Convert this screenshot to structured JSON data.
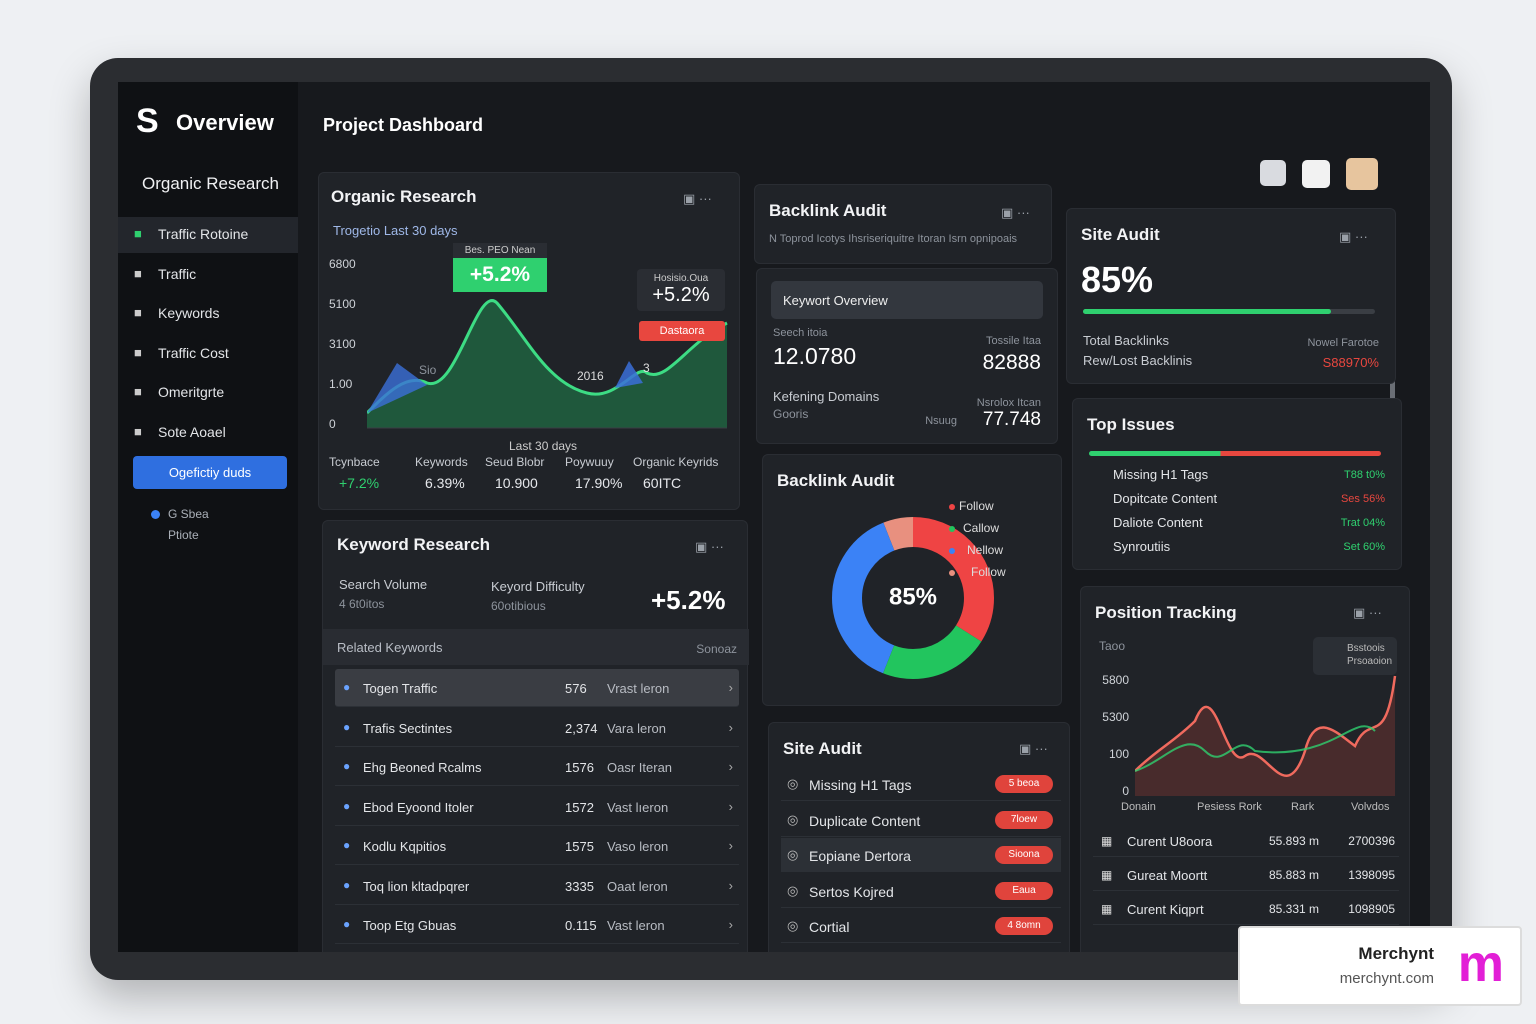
{
  "sidebar": {
    "logo": "Overview",
    "section": "Organic Research",
    "items": [
      "Traffic Rotoine",
      "Traffic",
      "Keywords",
      "Traffic Cost",
      "Omeritgrte",
      "Sote Aoael"
    ],
    "button": "Ogefictiy duds",
    "status": {
      "line1": "G Sbea",
      "line2": "Ptiote"
    }
  },
  "header": {
    "title": "Project Dashboard"
  },
  "organic_research": {
    "title": "Organic Research",
    "subtitle": "Trogetio Last 30 days",
    "y_labels": [
      "6800",
      "5100",
      "3100",
      "1.00",
      "0"
    ],
    "badge1": {
      "caption": "Bes. PEO Nean",
      "value": "+5.2%"
    },
    "badge2": {
      "caption": "Hosisio.Oua",
      "value": "+5.2%"
    },
    "badge3": "Dastaora",
    "point_labels": [
      "Sio",
      "2016",
      "3"
    ],
    "x_label": "Last 30 days",
    "stats": [
      {
        "label": "Tcynbace",
        "value": "+7.2%"
      },
      {
        "label": "Keywords",
        "value": "6.39%"
      },
      {
        "label": "Seud Blobr",
        "value": "10.900"
      },
      {
        "label": "Poywuuy",
        "value": "17.90%"
      },
      {
        "label": "Organic Keyrids",
        "value": "60ITC"
      }
    ]
  },
  "keyword_research": {
    "title": "Keyword Research",
    "search_volume": {
      "label": "Search Volume",
      "sub": "4 6t0itos"
    },
    "difficulty": {
      "label": "Keyord Difficulty",
      "sub": "60otibious"
    },
    "change": "+5.2%",
    "related": "Related Keywords",
    "sort": "Sonoaz",
    "rows": [
      [
        "Togen Traffic",
        "576",
        "Vrast leron"
      ],
      [
        "Trafis Sectintes",
        "2,374",
        "Vara leron"
      ],
      [
        "Ehg Beoned Rcalms",
        "1576",
        "Oasr Iteran"
      ],
      [
        "Ebod Eyoond Itoler",
        "1572",
        "Vast lıeron"
      ],
      [
        "Kodlu Kqpitios",
        "1575",
        "Vaso leron"
      ],
      [
        "Toq lion kltadpqrer",
        "3335",
        "Oaat leron"
      ],
      [
        "Toop Etg Gbuas",
        "0.115",
        "Vast leron"
      ]
    ]
  },
  "backlink_audit_top": {
    "title": "Backlink Audit",
    "subtitle": "N Toprod Icotys Ihsriseriquitre Itoran Isrn opnipoais"
  },
  "keyword_overview": {
    "search": "Keywort Overview",
    "left_label": "Seech itoia",
    "left_value": "12.0780",
    "right_label": "Tossile Itaa",
    "right_value": "82888",
    "ref_label": "Kefening Domains",
    "ref_sub": "Gooris",
    "ref_right_label": "Nsrolox Itcan",
    "ref_right_prefix": "Nsuug",
    "ref_right_value": "77.748"
  },
  "backlink_donut": {
    "title": "Backlink Audit",
    "center": "85%",
    "segments": [
      {
        "name": "Follow",
        "color": "#ef4444",
        "value": 34
      },
      {
        "name": "Callow",
        "color": "#22c55e",
        "value": 22
      },
      {
        "name": "Nellow",
        "color": "#3b82f6",
        "value": 38
      },
      {
        "name": "Follow",
        "color": "#e8907f",
        "value": 6
      }
    ]
  },
  "site_audit_list": {
    "title": "Site Audit",
    "rows": [
      {
        "label": "Missing H1 Tags",
        "badge": "5 beoa"
      },
      {
        "label": "Duplicate Content",
        "badge": "7loew"
      },
      {
        "label": "Eopiane Dertora",
        "badge": "Sioona"
      },
      {
        "label": "Sertos Kojred",
        "badge": "Eaua"
      },
      {
        "label": "Cortial",
        "badge": "4 8omn"
      }
    ]
  },
  "site_audit": {
    "title": "Site Audit",
    "score": 85,
    "score_label": "85%",
    "total": "Total Backlinks",
    "new_lost": "Rew/Lost Backlinis",
    "right_label": "Nowel Farotoe",
    "right_value": "S88970%"
  },
  "top_issues": {
    "title": "Top Issues",
    "rows": [
      [
        "Missing H1 Tags",
        "T88 t0%"
      ],
      [
        "Dopitcate Content",
        "Ses 56%"
      ],
      [
        "Daliote Content",
        "Trat 04%"
      ],
      [
        "Synroutiis",
        "Set 60%"
      ]
    ]
  },
  "position_tracking": {
    "title": "Position Tracking",
    "y_caption": "Taoo",
    "y_labels": [
      "5800",
      "5300",
      "100",
      "0"
    ],
    "legend": "Bsstoois Prsoaoion",
    "x_labels": [
      "Donain",
      "Pesiess Rork",
      "Rark",
      "Volvdos"
    ],
    "rows": [
      [
        "Curent U8oora",
        "55.893 m",
        "2700396"
      ],
      [
        "Gureat Moortt",
        "85.883 m",
        "1398095"
      ],
      [
        "Curent Kiqprt",
        "85.331 m",
        "1098905"
      ]
    ]
  },
  "badge": {
    "name": "Merchynt",
    "url": "merchynt.com"
  }
}
